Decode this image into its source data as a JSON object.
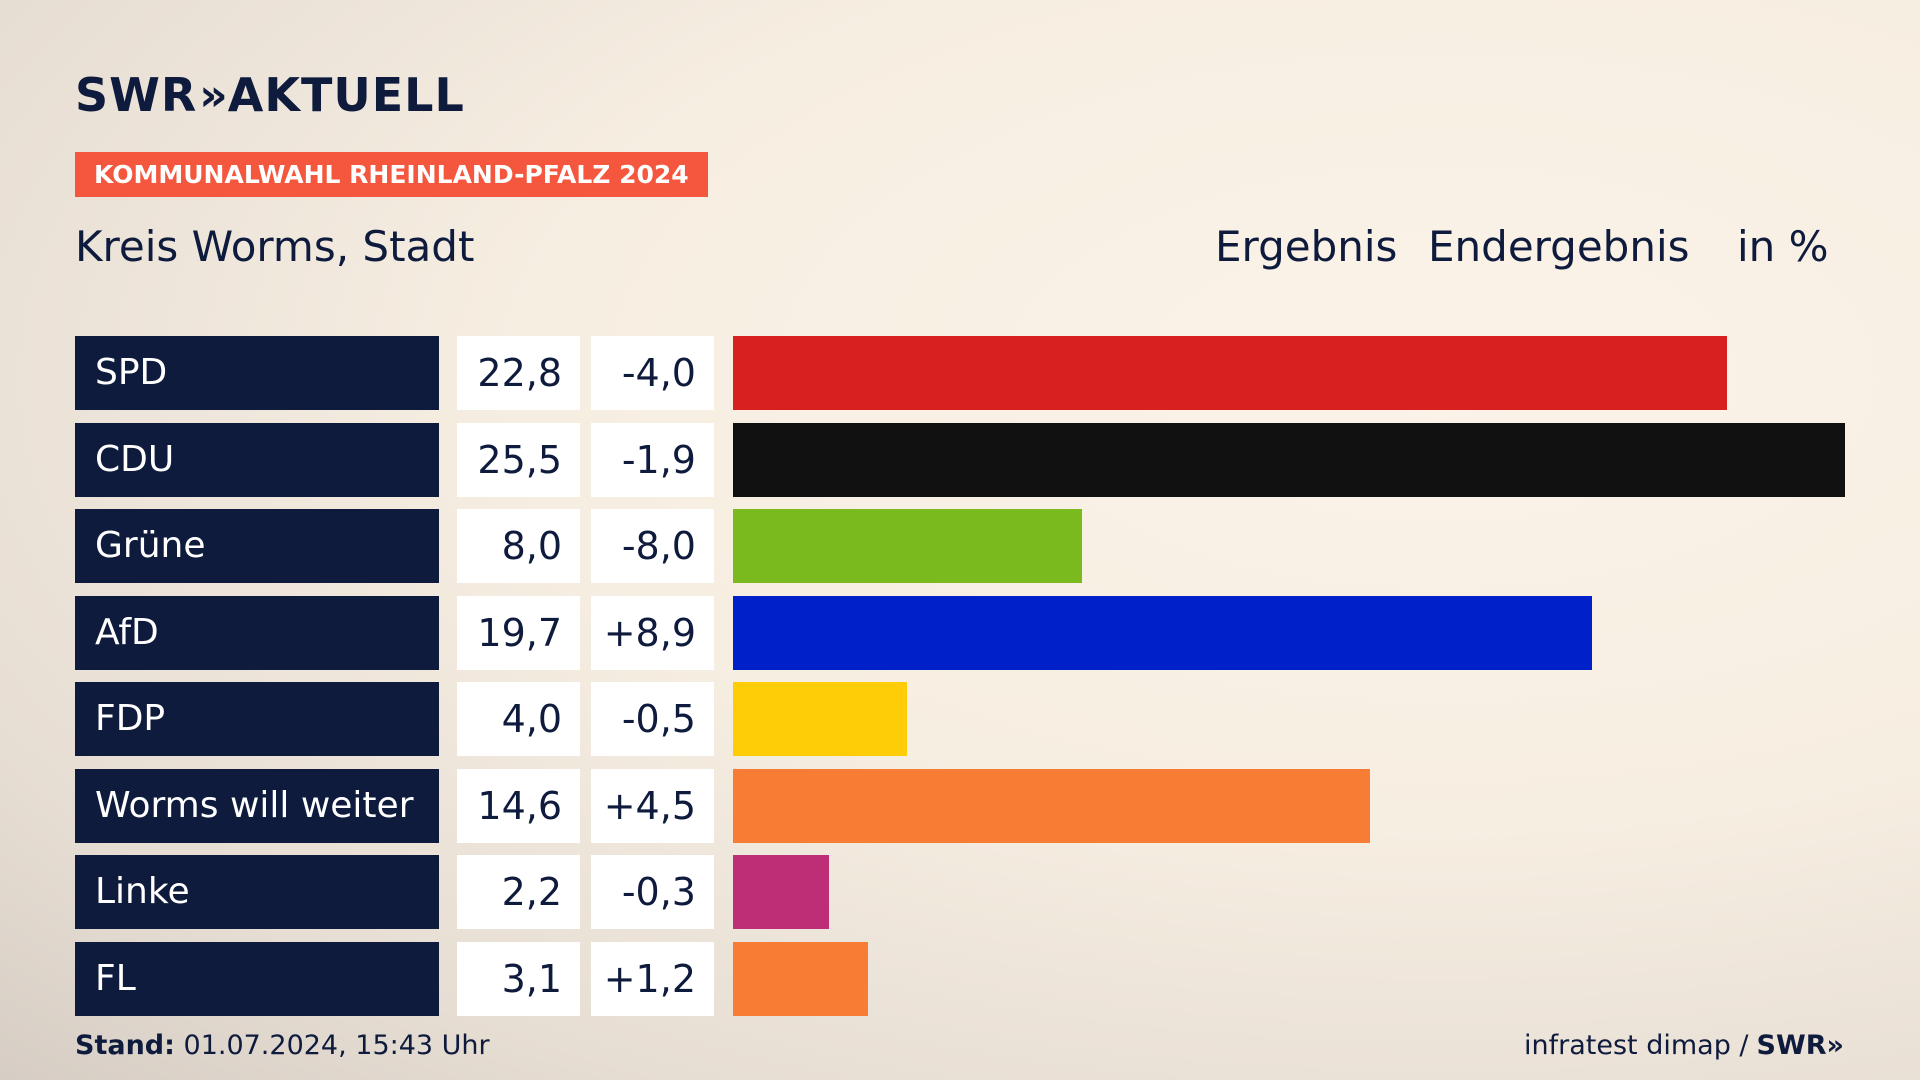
{
  "brand": {
    "logo_left": "SWR",
    "logo_arrows": "»",
    "logo_right": "AKTUELL"
  },
  "tag": "KOMMUNALWAHL RHEINLAND-PFALZ 2024",
  "region": "Kreis Worms, Stadt",
  "headers": {
    "result": "Ergebnis",
    "status": "Endergebnis",
    "unit": "in %"
  },
  "chart_data": {
    "type": "bar",
    "categories": [
      "SPD",
      "CDU",
      "Grüne",
      "AfD",
      "FDP",
      "Worms will weiter",
      "Linke",
      "FL"
    ],
    "values": [
      22.8,
      25.5,
      8.0,
      19.7,
      4.0,
      14.6,
      2.2,
      3.1
    ],
    "values_label": [
      "22,8",
      "25,5",
      "8,0",
      "19,7",
      "4,0",
      "14,6",
      "2,2",
      "3,1"
    ],
    "diff_label": [
      "-4,0",
      "-1,9",
      "-8,0",
      "+8,9",
      "-0,5",
      "+4,5",
      "-0,3",
      "+1,2"
    ],
    "colors": [
      "#d82020",
      "#111111",
      "#7aba1e",
      "#0021c9",
      "#ffcc08",
      "#f77c34",
      "#be2e77",
      "#f77c34"
    ],
    "orientation": "horizontal",
    "xlim": [
      0,
      25.5
    ]
  },
  "footer": {
    "stand_label": "Stand:",
    "stand_value": "01.07.2024, 15:43 Uhr",
    "source": "infratest dimap /",
    "source_logo": "SWR»"
  }
}
